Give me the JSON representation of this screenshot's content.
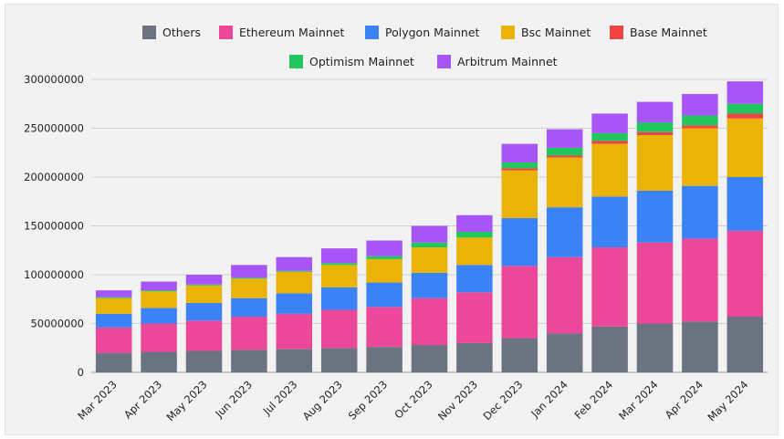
{
  "chart_data": {
    "type": "bar",
    "stacked": true,
    "title": "",
    "xlabel": "",
    "ylabel": "",
    "ylim": [
      0,
      300000000
    ],
    "yticks": [
      "0",
      "50000000",
      "100000000",
      "150000000",
      "200000000",
      "250000000",
      "300000000"
    ],
    "grid": true,
    "legend_position": "top",
    "categories": [
      "Mar 2023",
      "Apr 2023",
      "May 2023",
      "Jun 2023",
      "Jul 2023",
      "Aug 2023",
      "Sep 2023",
      "Oct 2023",
      "Nov 2023",
      "Dec 2023",
      "Jan 2024",
      "Feb 2024",
      "Mar 2024",
      "Apr 2024",
      "May 2024"
    ],
    "series": [
      {
        "name": "Others",
        "color": "#6b7280",
        "values": [
          20000000,
          21000000,
          22000000,
          23000000,
          24000000,
          25000000,
          26000000,
          28000000,
          30000000,
          35000000,
          40000000,
          47000000,
          50000000,
          52000000,
          57000000
        ]
      },
      {
        "name": "Ethereum Mainnet",
        "color": "#ec4899",
        "values": [
          26000000,
          29000000,
          31000000,
          34000000,
          36000000,
          39000000,
          41000000,
          48000000,
          52000000,
          74000000,
          78000000,
          81000000,
          83000000,
          85000000,
          88000000
        ]
      },
      {
        "name": "Polygon Mainnet",
        "color": "#3b82f6",
        "values": [
          14000000,
          16000000,
          18000000,
          19000000,
          21000000,
          23000000,
          25000000,
          26000000,
          28000000,
          49000000,
          51000000,
          52000000,
          53000000,
          54000000,
          55000000
        ]
      },
      {
        "name": "Bsc Mainnet",
        "color": "#eab308",
        "values": [
          16000000,
          17000000,
          18000000,
          20000000,
          22000000,
          23000000,
          24000000,
          26000000,
          28000000,
          49000000,
          51000000,
          54000000,
          57000000,
          59000000,
          60000000
        ]
      },
      {
        "name": "Base Mainnet",
        "color": "#ef4444",
        "values": [
          0,
          0,
          0,
          0,
          0,
          0,
          0,
          0,
          0,
          2000000,
          2000000,
          3000000,
          3000000,
          3000000,
          5000000
        ]
      },
      {
        "name": "Optimism Mainnet",
        "color": "#22c55e",
        "values": [
          1000000,
          1000000,
          1000000,
          1000000,
          1000000,
          2000000,
          3000000,
          5000000,
          6000000,
          6000000,
          8000000,
          8000000,
          10000000,
          10000000,
          10000000
        ]
      },
      {
        "name": "Arbitrum Mainnet",
        "color": "#a855f7",
        "values": [
          7000000,
          9000000,
          10000000,
          13000000,
          14000000,
          15000000,
          16000000,
          17000000,
          17000000,
          19000000,
          19000000,
          20000000,
          21000000,
          22000000,
          23000000
        ]
      }
    ]
  }
}
